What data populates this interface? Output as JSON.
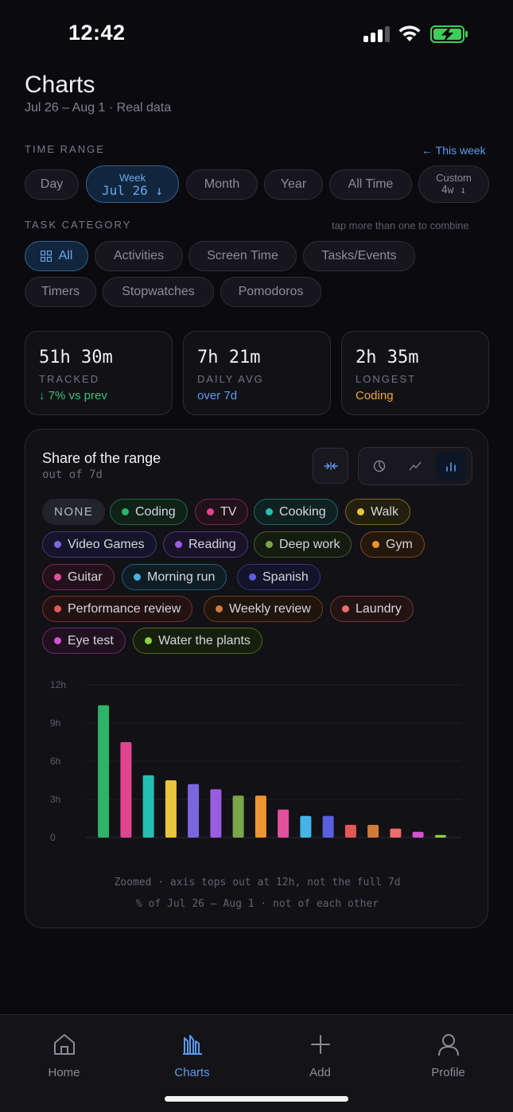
{
  "status_bar": {
    "time": "12:42"
  },
  "header": {
    "title": "Charts",
    "subtitle": "Jul 26 – Aug 1 · Real data"
  },
  "time_range": {
    "label": "TIME RANGE",
    "this_week_link": "← This week",
    "options": [
      {
        "label": "Day"
      },
      {
        "label": "Week",
        "value": "Jul 26 ↓",
        "selected": true
      },
      {
        "label": "Month"
      },
      {
        "label": "Year"
      },
      {
        "label": "All Time"
      },
      {
        "label": "Custom",
        "value": "4w ↓"
      }
    ]
  },
  "task_category": {
    "label": "TASK CATEGORY",
    "hint": "tap more than one to combine",
    "options": [
      {
        "label": "All",
        "icon": "grid-icon",
        "selected": true
      },
      {
        "label": "Activities"
      },
      {
        "label": "Screen Time"
      },
      {
        "label": "Tasks/Events"
      },
      {
        "label": "Timers"
      },
      {
        "label": "Stopwatches"
      },
      {
        "label": "Pomodoros"
      }
    ]
  },
  "stats": [
    {
      "value": "51h 30m",
      "label": "TRACKED",
      "sub": "↓ 7% vs prev",
      "sub_color": "#3fbf7f"
    },
    {
      "value": "7h 21m",
      "label": "DAILY AVG",
      "sub": "over 7d",
      "sub_color": "#5a9bf0"
    },
    {
      "value": "2h 35m",
      "label": "LONGEST",
      "sub": "Coding",
      "sub_color": "#f0a93b"
    }
  ],
  "share_card": {
    "title": "Share of the range",
    "subtitle": "out of 7d",
    "view_modes": [
      "pie-chart-icon",
      "line-chart-icon",
      "bar-chart-icon"
    ],
    "active_view": "bar-chart-icon",
    "none_label": "NONE",
    "legend": [
      {
        "name": "Coding",
        "color": "#2fb36a"
      },
      {
        "name": "TV",
        "color": "#e0468f"
      },
      {
        "name": "Cooking",
        "color": "#25bfb2"
      },
      {
        "name": "Walk",
        "color": "#e8c53a"
      },
      {
        "name": "Video Games",
        "color": "#7b66e0"
      },
      {
        "name": "Reading",
        "color": "#9a5ce0"
      },
      {
        "name": "Deep work",
        "color": "#78a64a"
      },
      {
        "name": "Gym",
        "color": "#ee9430"
      },
      {
        "name": "Guitar",
        "color": "#e2509d"
      },
      {
        "name": "Morning run",
        "color": "#44b4e6"
      },
      {
        "name": "Spanish",
        "color": "#5a5fe0"
      },
      {
        "name": "Performance review",
        "color": "#e45757"
      },
      {
        "name": "Weekly review",
        "color": "#d07a3a"
      },
      {
        "name": "Laundry",
        "color": "#f06b6b"
      },
      {
        "name": "Eye test",
        "color": "#d64fd0"
      },
      {
        "name": "Water the plants",
        "color": "#8fd040"
      }
    ],
    "footnote_1": "Zoomed · axis tops out at 12h, not the full 7d",
    "footnote_2": "% of Jul 26 – Aug 1 · not of each other"
  },
  "chart_data": {
    "type": "bar",
    "title": "",
    "xlabel": "",
    "ylabel": "",
    "ylim": [
      0,
      12
    ],
    "yticks": [
      "12h",
      "9h",
      "6h",
      "3h",
      "0"
    ],
    "grid": true,
    "categories": [
      "Coding",
      "TV",
      "Cooking",
      "Walk",
      "Video Games",
      "Reading",
      "Deep work",
      "Gym",
      "Guitar",
      "Morning run",
      "Spanish",
      "Performance review",
      "Weekly review",
      "Laundry",
      "Eye test",
      "Water the plants"
    ],
    "values": [
      10.4,
      7.5,
      4.9,
      4.5,
      4.2,
      3.8,
      3.3,
      3.3,
      2.2,
      1.7,
      1.7,
      1.0,
      1.0,
      0.7,
      0.45,
      0.2
    ],
    "colors": [
      "#2fb36a",
      "#e0468f",
      "#25bfb2",
      "#e8c53a",
      "#7b66e0",
      "#9a5ce0",
      "#78a64a",
      "#ee9430",
      "#e2509d",
      "#44b4e6",
      "#5a5fe0",
      "#e45757",
      "#d07a3a",
      "#f06b6b",
      "#d64fd0",
      "#8fd040"
    ]
  },
  "tab_bar": {
    "items": [
      {
        "label": "Home",
        "icon": "home-icon"
      },
      {
        "label": "Charts",
        "icon": "charts-icon",
        "active": true
      },
      {
        "label": "Add",
        "icon": "plus-icon"
      },
      {
        "label": "Profile",
        "icon": "profile-icon"
      }
    ]
  }
}
